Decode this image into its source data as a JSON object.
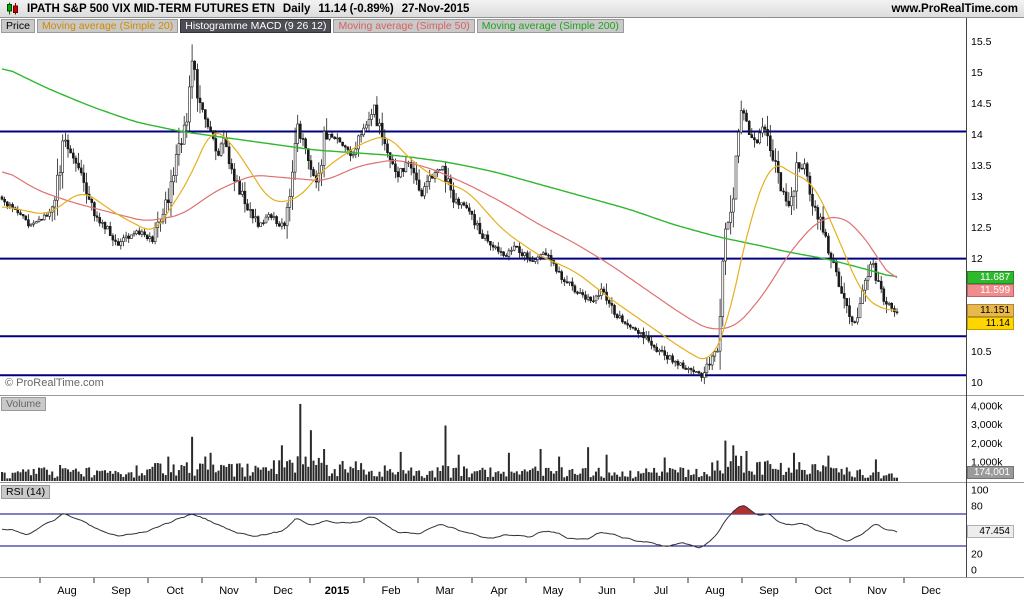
{
  "header": {
    "title": "IPATH S&P 500 VIX MID-TERM FUTURES ETN",
    "timeframe": "Daily",
    "last_price": "11.14",
    "change": "(-0.89%)",
    "date": "27-Nov-2015",
    "website": "www.ProRealTime.com"
  },
  "indicator_bar": {
    "price": "Price",
    "ma20": "Moving average (Simple 20)",
    "macd": "Histogramme MACD (9 26 12)",
    "ma50": "Moving average (Simple 50)",
    "ma200": "Moving average (Simple 200)"
  },
  "watermark": "© ProRealTime.com",
  "volume_pane_label": "Volume",
  "rsi_pane_label": "RSI (14)",
  "colors": {
    "ma20": "#e6b01e",
    "ma50": "#dd7272",
    "ma200": "#2eb82e",
    "hline": "#000080",
    "candle": "#1a1a1a",
    "volume_bar": "#2a2a2a",
    "rsi_line": "#333333",
    "rsi_fill": "#b03030"
  },
  "chart_data": {
    "type": "candlestick",
    "title": "IPATH S&P 500 VIX MID-TERM FUTURES ETN - Daily - 11.14 (-0.89%) - 27-Nov-2015",
    "panes": [
      "price+moving-averages",
      "volume",
      "rsi"
    ],
    "x_axis": {
      "labels": [
        "Aug",
        "Sep",
        "Oct",
        "Nov",
        "Dec",
        "2015",
        "Feb",
        "Mar",
        "Apr",
        "May",
        "Jun",
        "Jul",
        "Aug",
        "Sep",
        "Oct",
        "Nov",
        "Dec"
      ],
      "bold_label": "2015"
    },
    "price_axis": {
      "min": 9.85,
      "max": 15.75,
      "ticks": [
        {
          "label": "15.5",
          "value": 15.5
        },
        {
          "label": "15",
          "value": 15
        },
        {
          "label": "14.5",
          "value": 14.5
        },
        {
          "label": "14",
          "value": 14
        },
        {
          "label": "13.5",
          "value": 13.5
        },
        {
          "label": "13",
          "value": 13
        },
        {
          "label": "12.5",
          "value": 12.5
        },
        {
          "label": "12",
          "value": 12
        },
        {
          "label": "10.5",
          "value": 10.5
        },
        {
          "label": "10",
          "value": 10
        }
      ]
    },
    "horizontal_lines": [
      14.05,
      12.0,
      10.75,
      10.12
    ],
    "price_badges": [
      {
        "label": "11.687",
        "price": 11.687,
        "bg": "#2eb82e",
        "fg": "#ffffff"
      },
      {
        "label": "11.599",
        "price": 11.599,
        "bg": "#ef8c8c",
        "fg": "#ffffff"
      },
      {
        "label": "11.151",
        "price": 11.151,
        "bg": "#e8b84d",
        "fg": "#000000"
      },
      {
        "label": "11.14",
        "price": 11.14,
        "bg": "#ffd500",
        "fg": "#000000"
      }
    ],
    "series": {
      "candle_count": 340,
      "last_close": 11.14,
      "close_anchors": [
        [
          0,
          12.95
        ],
        [
          0.03,
          12.55
        ],
        [
          0.055,
          12.75
        ],
        [
          0.07,
          13.9
        ],
        [
          0.082,
          13.55
        ],
        [
          0.105,
          12.7
        ],
        [
          0.13,
          12.25
        ],
        [
          0.15,
          12.45
        ],
        [
          0.168,
          12.3
        ],
        [
          0.185,
          12.95
        ],
        [
          0.198,
          13.8
        ],
        [
          0.208,
          14.3
        ],
        [
          0.213,
          15.3
        ],
        [
          0.22,
          14.55
        ],
        [
          0.232,
          14.1
        ],
        [
          0.24,
          13.6
        ],
        [
          0.248,
          13.9
        ],
        [
          0.26,
          13.3
        ],
        [
          0.272,
          12.9
        ],
        [
          0.285,
          12.55
        ],
        [
          0.3,
          12.7
        ],
        [
          0.315,
          12.5
        ],
        [
          0.322,
          13.1
        ],
        [
          0.33,
          14.15
        ],
        [
          0.342,
          13.55
        ],
        [
          0.352,
          13.25
        ],
        [
          0.362,
          14.05
        ],
        [
          0.375,
          13.9
        ],
        [
          0.39,
          13.65
        ],
        [
          0.405,
          14.1
        ],
        [
          0.415,
          14.5
        ],
        [
          0.428,
          13.75
        ],
        [
          0.442,
          13.35
        ],
        [
          0.455,
          13.55
        ],
        [
          0.468,
          13
        ],
        [
          0.478,
          13.3
        ],
        [
          0.492,
          13.5
        ],
        [
          0.505,
          12.95
        ],
        [
          0.52,
          12.8
        ],
        [
          0.535,
          12.4
        ],
        [
          0.55,
          12.2
        ],
        [
          0.562,
          12.05
        ],
        [
          0.575,
          12.2
        ],
        [
          0.59,
          11.95
        ],
        [
          0.605,
          12.1
        ],
        [
          0.618,
          11.85
        ],
        [
          0.632,
          11.6
        ],
        [
          0.645,
          11.45
        ],
        [
          0.658,
          11.3
        ],
        [
          0.67,
          11.5
        ],
        [
          0.682,
          11.15
        ],
        [
          0.695,
          11
        ],
        [
          0.71,
          10.85
        ],
        [
          0.725,
          10.6
        ],
        [
          0.74,
          10.45
        ],
        [
          0.755,
          10.3
        ],
        [
          0.77,
          10.2
        ],
        [
          0.782,
          10.12
        ],
        [
          0.79,
          10.35
        ],
        [
          0.8,
          10.55
        ],
        [
          0.808,
          12.4
        ],
        [
          0.818,
          13.2
        ],
        [
          0.826,
          14.4
        ],
        [
          0.833,
          14.1
        ],
        [
          0.842,
          13.8
        ],
        [
          0.852,
          14.15
        ],
        [
          0.862,
          13.6
        ],
        [
          0.872,
          13.1
        ],
        [
          0.88,
          12.8
        ],
        [
          0.888,
          13.4
        ],
        [
          0.897,
          13.55
        ],
        [
          0.905,
          13
        ],
        [
          0.915,
          12.55
        ],
        [
          0.925,
          12.1
        ],
        [
          0.935,
          11.6
        ],
        [
          0.945,
          11.15
        ],
        [
          0.952,
          10.95
        ],
        [
          0.962,
          11.4
        ],
        [
          0.972,
          11.95
        ],
        [
          0.98,
          11.6
        ],
        [
          0.988,
          11.3
        ],
        [
          0.995,
          11.2
        ],
        [
          1,
          11.14
        ]
      ],
      "ma20_value": 11.151,
      "ma20_anchors": [
        [
          0,
          12.85
        ],
        [
          0.05,
          12.7
        ],
        [
          0.09,
          13.1
        ],
        [
          0.13,
          12.7
        ],
        [
          0.17,
          12.4
        ],
        [
          0.21,
          13.3
        ],
        [
          0.235,
          14.15
        ],
        [
          0.26,
          13.8
        ],
        [
          0.3,
          12.9
        ],
        [
          0.33,
          12.95
        ],
        [
          0.36,
          13.45
        ],
        [
          0.4,
          13.85
        ],
        [
          0.43,
          14
        ],
        [
          0.46,
          13.55
        ],
        [
          0.49,
          13.25
        ],
        [
          0.52,
          13.1
        ],
        [
          0.56,
          12.45
        ],
        [
          0.6,
          12.05
        ],
        [
          0.64,
          11.8
        ],
        [
          0.68,
          11.35
        ],
        [
          0.72,
          10.95
        ],
        [
          0.76,
          10.55
        ],
        [
          0.79,
          10.3
        ],
        [
          0.81,
          10.9
        ],
        [
          0.835,
          12.6
        ],
        [
          0.86,
          13.6
        ],
        [
          0.885,
          13.35
        ],
        [
          0.905,
          13.25
        ],
        [
          0.925,
          12.65
        ],
        [
          0.945,
          11.95
        ],
        [
          0.962,
          11.4
        ],
        [
          0.98,
          11.2
        ],
        [
          1,
          11.151
        ]
      ],
      "ma50_value": 11.599,
      "ma50_anchors": [
        [
          0,
          13.45
        ],
        [
          0.04,
          13.1
        ],
        [
          0.08,
          12.9
        ],
        [
          0.12,
          12.75
        ],
        [
          0.16,
          12.6
        ],
        [
          0.2,
          12.7
        ],
        [
          0.24,
          13.1
        ],
        [
          0.28,
          13.35
        ],
        [
          0.32,
          13.3
        ],
        [
          0.36,
          13.25
        ],
        [
          0.4,
          13.5
        ],
        [
          0.44,
          13.6
        ],
        [
          0.48,
          13.45
        ],
        [
          0.52,
          13.2
        ],
        [
          0.56,
          12.9
        ],
        [
          0.6,
          12.55
        ],
        [
          0.64,
          12.25
        ],
        [
          0.68,
          11.9
        ],
        [
          0.72,
          11.5
        ],
        [
          0.76,
          11.1
        ],
        [
          0.79,
          10.85
        ],
        [
          0.82,
          10.9
        ],
        [
          0.85,
          11.4
        ],
        [
          0.88,
          12.1
        ],
        [
          0.91,
          12.6
        ],
        [
          0.935,
          12.7
        ],
        [
          0.955,
          12.5
        ],
        [
          0.975,
          12.1
        ],
        [
          0.99,
          11.75
        ],
        [
          1,
          11.599
        ]
      ],
      "ma200_value": 11.687,
      "ma200_anchors": [
        [
          0,
          15.1
        ],
        [
          0.05,
          14.75
        ],
        [
          0.1,
          14.45
        ],
        [
          0.15,
          14.2
        ],
        [
          0.2,
          14.05
        ],
        [
          0.25,
          13.95
        ],
        [
          0.3,
          13.85
        ],
        [
          0.35,
          13.75
        ],
        [
          0.4,
          13.7
        ],
        [
          0.45,
          13.65
        ],
        [
          0.5,
          13.55
        ],
        [
          0.55,
          13.4
        ],
        [
          0.6,
          13.2
        ],
        [
          0.65,
          13
        ],
        [
          0.7,
          12.8
        ],
        [
          0.75,
          12.55
        ],
        [
          0.8,
          12.35
        ],
        [
          0.85,
          12.2
        ],
        [
          0.88,
          12.1
        ],
        [
          0.92,
          12
        ],
        [
          0.96,
          11.85
        ],
        [
          1,
          11.687
        ]
      ]
    },
    "volume": {
      "ticks": [
        {
          "label": "4,000k",
          "value": 4000
        },
        {
          "label": "3,000k",
          "value": 3000
        },
        {
          "label": "2,000k",
          "value": 2000
        },
        {
          "label": "1,000k",
          "value": 1000
        }
      ],
      "badge": {
        "label": "174,001",
        "value": 174,
        "bg": "#9a9a9a",
        "fg": "#ffffff"
      },
      "base_anchors": [
        [
          0,
          350
        ],
        [
          0.07,
          550
        ],
        [
          0.13,
          420
        ],
        [
          0.2,
          800
        ],
        [
          0.23,
          900
        ],
        [
          0.28,
          550
        ],
        [
          0.33,
          850
        ],
        [
          0.4,
          650
        ],
        [
          0.47,
          560
        ],
        [
          0.55,
          520
        ],
        [
          0.62,
          470
        ],
        [
          0.7,
          420
        ],
        [
          0.78,
          520
        ],
        [
          0.81,
          950
        ],
        [
          0.85,
          750
        ],
        [
          0.91,
          620
        ],
        [
          0.95,
          460
        ],
        [
          1,
          260
        ]
      ],
      "spikes": [
        [
          0.185,
          1300
        ],
        [
          0.213,
          2350
        ],
        [
          0.233,
          1500
        ],
        [
          0.313,
          1900
        ],
        [
          0.332,
          4100
        ],
        [
          0.346,
          2700
        ],
        [
          0.361,
          1700
        ],
        [
          0.446,
          1550
        ],
        [
          0.495,
          2950
        ],
        [
          0.511,
          1400
        ],
        [
          0.565,
          1500
        ],
        [
          0.601,
          1700
        ],
        [
          0.623,
          1300
        ],
        [
          0.654,
          1800
        ],
        [
          0.676,
          1400
        ],
        [
          0.739,
          1250
        ],
        [
          0.807,
          2150
        ],
        [
          0.817,
          1900
        ],
        [
          0.832,
          1600
        ],
        [
          0.886,
          1500
        ],
        [
          0.924,
          1350
        ],
        [
          0.975,
          1150
        ]
      ]
    },
    "rsi": {
      "ticks": [
        {
          "label": "100",
          "value": 100
        },
        {
          "label": "80",
          "value": 80
        },
        {
          "label": "20",
          "value": 20
        },
        {
          "label": "0",
          "value": 0
        }
      ],
      "badge": {
        "label": "47.454",
        "value": 47.454,
        "bg": "#ededed",
        "fg": "#000000"
      },
      "levels": [
        70,
        30
      ],
      "anchors": [
        [
          0,
          52
        ],
        [
          0.03,
          45
        ],
        [
          0.07,
          71
        ],
        [
          0.1,
          55
        ],
        [
          0.13,
          42
        ],
        [
          0.16,
          48
        ],
        [
          0.185,
          58
        ],
        [
          0.213,
          71
        ],
        [
          0.235,
          60
        ],
        [
          0.26,
          48
        ],
        [
          0.285,
          42
        ],
        [
          0.315,
          50
        ],
        [
          0.33,
          65
        ],
        [
          0.345,
          55
        ],
        [
          0.362,
          62
        ],
        [
          0.39,
          58
        ],
        [
          0.415,
          66
        ],
        [
          0.44,
          48
        ],
        [
          0.468,
          44
        ],
        [
          0.478,
          52
        ],
        [
          0.492,
          58
        ],
        [
          0.52,
          45
        ],
        [
          0.545,
          40
        ],
        [
          0.565,
          44
        ],
        [
          0.59,
          42
        ],
        [
          0.61,
          50
        ],
        [
          0.632,
          40
        ],
        [
          0.655,
          38
        ],
        [
          0.67,
          48
        ],
        [
          0.695,
          40
        ],
        [
          0.72,
          35
        ],
        [
          0.74,
          30
        ],
        [
          0.76,
          34
        ],
        [
          0.782,
          28
        ],
        [
          0.8,
          45
        ],
        [
          0.808,
          62
        ],
        [
          0.826,
          83
        ],
        [
          0.835,
          75
        ],
        [
          0.845,
          68
        ],
        [
          0.855,
          72
        ],
        [
          0.865,
          62
        ],
        [
          0.88,
          55
        ],
        [
          0.895,
          60
        ],
        [
          0.91,
          50
        ],
        [
          0.925,
          44
        ],
        [
          0.945,
          36
        ],
        [
          0.96,
          45
        ],
        [
          0.975,
          58
        ],
        [
          0.988,
          50
        ],
        [
          1,
          47.454
        ]
      ]
    }
  }
}
